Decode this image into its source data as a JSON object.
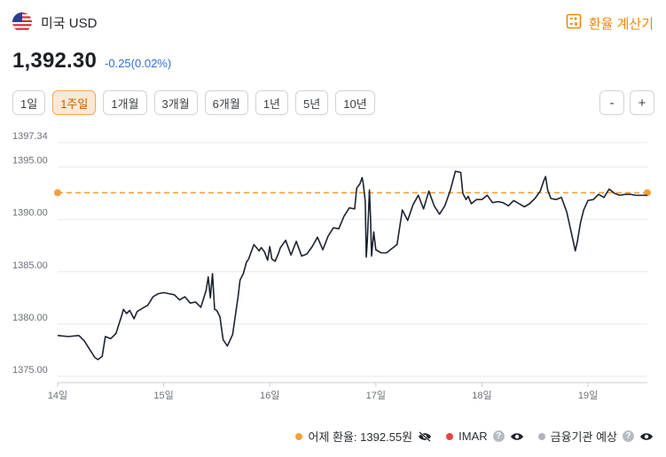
{
  "header": {
    "flag_icon": "us-flag-icon",
    "currency_name": "미국 USD",
    "calculator_label": "환율 계산기",
    "accent_color": "#f0860a"
  },
  "rate": {
    "value": "1,392.30",
    "change": "-0.25(0.02%)"
  },
  "periods": [
    {
      "label": "1일",
      "active": false
    },
    {
      "label": "1주일",
      "active": true
    },
    {
      "label": "1개월",
      "active": false
    },
    {
      "label": "3개월",
      "active": false
    },
    {
      "label": "6개월",
      "active": false
    },
    {
      "label": "1년",
      "active": false
    },
    {
      "label": "5년",
      "active": false
    },
    {
      "label": "10년",
      "active": false
    }
  ],
  "zoom": {
    "minus": "-",
    "plus": "+"
  },
  "legend": {
    "yesterday": "어제 환율: 1392.55원",
    "imar": "IMAR",
    "forecast": "금융기관 예상",
    "colors": {
      "yesterday": "#f5a03a",
      "imar": "#e8453c",
      "forecast": "#b0b5bc"
    }
  },
  "chart_data": {
    "type": "line",
    "ylim": [
      1374.4,
      1397.34
    ],
    "yticks": [
      "1397.34",
      "1395.00",
      "1390.00",
      "1385.00",
      "1380.00",
      "1375.00"
    ],
    "ytick_values": [
      1397.34,
      1395.0,
      1390.0,
      1385.0,
      1380.0,
      1375.0
    ],
    "xticks": [
      "14일",
      "15일",
      "16일",
      "17일",
      "18일",
      "19일"
    ],
    "xtick_values": [
      14,
      15,
      16,
      17,
      18,
      19
    ],
    "xlim": [
      14,
      19.56
    ],
    "grid": true,
    "reference_line": {
      "value": 1392.55,
      "color": "#f5a03a",
      "style": "dashed"
    },
    "series_color": "#1c2331",
    "x": [
      14.0,
      14.1,
      14.2,
      14.25,
      14.3,
      14.35,
      14.38,
      14.42,
      14.45,
      14.5,
      14.55,
      14.6,
      14.62,
      14.65,
      14.68,
      14.72,
      14.75,
      14.8,
      14.85,
      14.9,
      14.95,
      15.0,
      15.05,
      15.1,
      15.15,
      15.2,
      15.25,
      15.3,
      15.35,
      15.4,
      15.42,
      15.44,
      15.46,
      15.48,
      15.5,
      15.53,
      15.56,
      15.6,
      15.65,
      15.7,
      15.72,
      15.75,
      15.78,
      15.8,
      15.85,
      15.9,
      15.92,
      15.95,
      15.98,
      16.0,
      16.02,
      16.05,
      16.08,
      16.1,
      16.15,
      16.2,
      16.25,
      16.3,
      16.35,
      16.4,
      16.45,
      16.5,
      16.55,
      16.6,
      16.65,
      16.7,
      16.75,
      16.8,
      16.82,
      16.85,
      16.87,
      16.88,
      16.9,
      16.91,
      16.92,
      16.94,
      16.95,
      16.96,
      16.98,
      17.0,
      17.05,
      17.1,
      17.15,
      17.2,
      17.25,
      17.3,
      17.35,
      17.4,
      17.45,
      17.5,
      17.55,
      17.6,
      17.65,
      17.7,
      17.75,
      17.8,
      17.82,
      17.85,
      17.87,
      17.9,
      17.95,
      18.0,
      18.05,
      18.1,
      18.15,
      18.2,
      18.25,
      18.3,
      18.35,
      18.4,
      18.45,
      18.5,
      18.55,
      18.58,
      18.6,
      18.62,
      18.65,
      18.7,
      18.75,
      18.8,
      18.85,
      18.88,
      18.9,
      18.93,
      18.96,
      19.0,
      19.05,
      19.1,
      19.15,
      19.2,
      19.25,
      19.3,
      19.35,
      19.4,
      19.45,
      19.5,
      19.56
    ],
    "y": [
      1378.9,
      1378.8,
      1378.9,
      1378.4,
      1377.6,
      1376.8,
      1376.6,
      1376.9,
      1378.8,
      1378.6,
      1379.1,
      1380.7,
      1381.4,
      1381.0,
      1381.3,
      1380.5,
      1381.2,
      1381.5,
      1381.8,
      1382.6,
      1382.9,
      1383.0,
      1382.9,
      1382.8,
      1382.3,
      1382.6,
      1382.0,
      1382.1,
      1381.6,
      1383.2,
      1384.5,
      1382.5,
      1384.8,
      1381.4,
      1381.3,
      1380.7,
      1378.5,
      1377.9,
      1379.0,
      1382.5,
      1384.2,
      1384.8,
      1385.9,
      1386.2,
      1387.6,
      1387.0,
      1387.3,
      1386.9,
      1386.1,
      1387.4,
      1386.2,
      1386.0,
      1386.7,
      1387.3,
      1388.0,
      1386.6,
      1387.9,
      1386.5,
      1386.7,
      1387.4,
      1388.3,
      1387.1,
      1388.4,
      1389.2,
      1389.1,
      1390.3,
      1391.1,
      1391.0,
      1393.0,
      1393.4,
      1394.0,
      1393.5,
      1391.7,
      1386.4,
      1387.9,
      1392.8,
      1390.2,
      1386.5,
      1388.8,
      1387.1,
      1386.8,
      1386.8,
      1387.2,
      1387.6,
      1390.9,
      1389.9,
      1391.4,
      1392.3,
      1391.0,
      1392.7,
      1391.3,
      1390.5,
      1391.3,
      1392.7,
      1394.6,
      1394.5,
      1392.5,
      1391.9,
      1392.2,
      1391.5,
      1391.9,
      1391.9,
      1392.3,
      1391.6,
      1391.7,
      1391.6,
      1391.3,
      1391.8,
      1391.5,
      1391.2,
      1391.5,
      1392.0,
      1392.7,
      1393.6,
      1394.1,
      1392.8,
      1392.0,
      1391.9,
      1392.1,
      1390.7,
      1388.4,
      1387.0,
      1387.9,
      1389.7,
      1390.9,
      1391.8,
      1391.9,
      1392.4,
      1392.1,
      1392.9,
      1392.5,
      1392.3,
      1392.4,
      1392.4,
      1392.3,
      1392.3,
      1392.3
    ]
  }
}
